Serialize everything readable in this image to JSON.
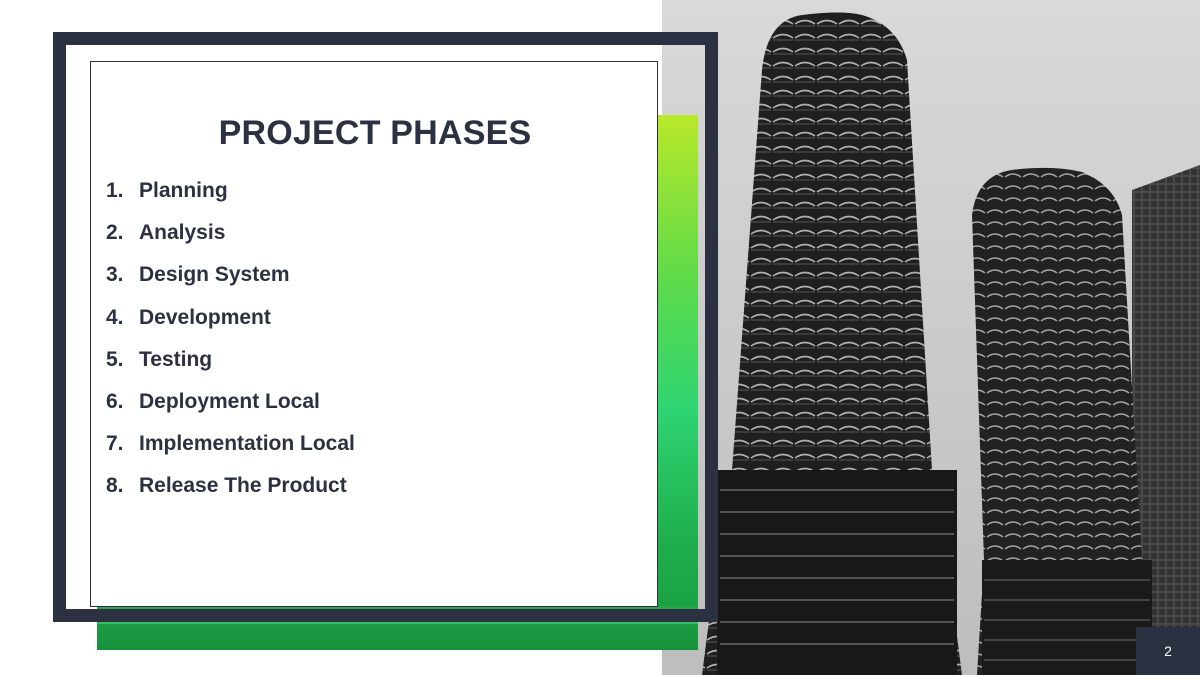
{
  "slide": {
    "title": "PROJECT PHASES",
    "phases": [
      {
        "num": "1.",
        "label": "Planning"
      },
      {
        "num": "2.",
        "label": "Analysis"
      },
      {
        "num": "3.",
        "label": "Design System"
      },
      {
        "num": "4.",
        "label": "Development"
      },
      {
        "num": "5.",
        "label": "Testing"
      },
      {
        "num": "6.",
        "label": "Deployment Local"
      },
      {
        "num": "7.",
        "label": "Implementation Local"
      },
      {
        "num": "8.",
        "label": "Release The Product"
      }
    ],
    "slide_number": "2"
  },
  "image": {
    "icon": "twin-towers-photo",
    "tone": "grayscale"
  },
  "colors": {
    "frame": "#2c3142",
    "text": "#2c3142",
    "accent_green": "#1c9a42",
    "accent_lime": "#b9e82a",
    "badge": "#2c3142"
  }
}
